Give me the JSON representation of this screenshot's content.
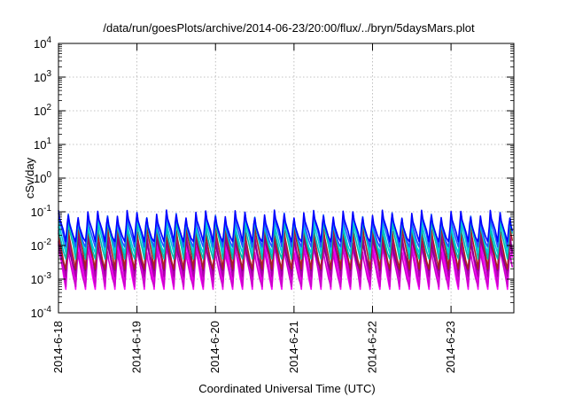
{
  "chart_data": {
    "type": "line",
    "title": "/data/run/goesPlots/archive/2014-06-23/20:00/flux/../bryn/5daysMars.plot",
    "xlabel": "Coordinated Universal Time (UTC)",
    "ylabel": "cSv/day",
    "yscale": "log",
    "ylim_exponents": [
      -4,
      4
    ],
    "y_ticks": [
      {
        "base": "10",
        "exp": "-4"
      },
      {
        "base": "10",
        "exp": "-3"
      },
      {
        "base": "10",
        "exp": "-2"
      },
      {
        "base": "10",
        "exp": "-1"
      },
      {
        "base": "10",
        "exp": "0"
      },
      {
        "base": "10",
        "exp": "1"
      },
      {
        "base": "10",
        "exp": "2"
      },
      {
        "base": "10",
        "exp": "3"
      },
      {
        "base": "10",
        "exp": "4"
      }
    ],
    "xlim_days": [
      0,
      5.8
    ],
    "x_ticks": [
      "2014-6-18",
      "2014-6-19",
      "2014-6-20",
      "2014-6-21",
      "2014-6-22",
      "2014-6-23"
    ],
    "grid": true,
    "cycles_per_day": 8,
    "series": [
      {
        "color": "#ff00ff",
        "peak": 0.012,
        "trough": 0.0005
      },
      {
        "color": "#ee00ee",
        "peak": 0.02,
        "trough": 0.0008
      },
      {
        "color": "#cc00cc",
        "peak": 0.008,
        "trough": 0.0006
      },
      {
        "color": "#aa00aa",
        "peak": 0.025,
        "trough": 0.0012
      },
      {
        "color": "#880088",
        "peak": 0.015,
        "trough": 0.0018
      },
      {
        "color": "#aa2222",
        "peak": 0.03,
        "trough": 0.002
      },
      {
        "color": "#00bbaa",
        "peak": 0.045,
        "trough": 0.004
      },
      {
        "color": "#00ccdd",
        "peak": 0.06,
        "trough": 0.006
      },
      {
        "color": "#2255ff",
        "peak": 0.075,
        "trough": 0.009
      },
      {
        "color": "#0000ff",
        "peak": 0.085,
        "trough": 0.013
      }
    ]
  }
}
